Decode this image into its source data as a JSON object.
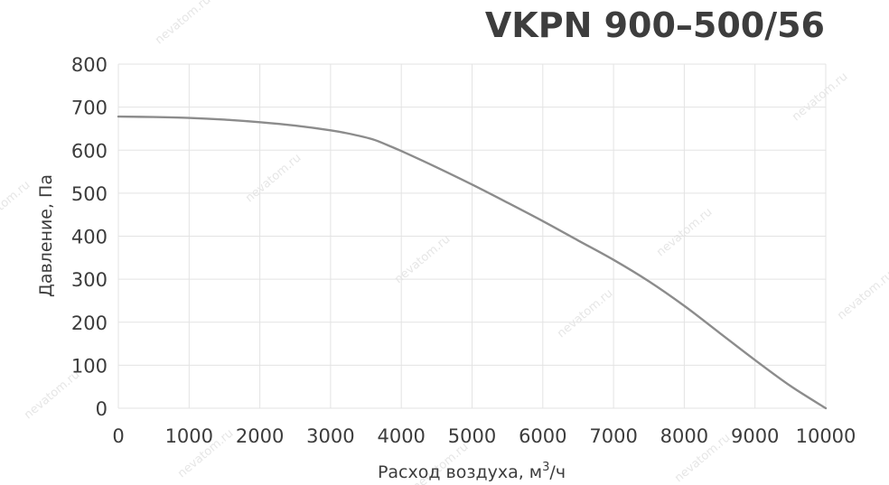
{
  "chart_data": {
    "type": "line",
    "title": "VKPN 900–500/56",
    "xlabel": "Расход воздуха, м",
    "xlabel_sup": "3",
    "xlabel_suffix": "/ч",
    "ylabel": "Давление, Па",
    "xlim": [
      0,
      10000
    ],
    "ylim": [
      0,
      800
    ],
    "x_ticks": [
      0,
      1000,
      2000,
      3000,
      4000,
      5000,
      6000,
      7000,
      8000,
      9000,
      10000
    ],
    "y_ticks": [
      0,
      100,
      200,
      300,
      400,
      500,
      600,
      700,
      800
    ],
    "grid": true,
    "series": [
      {
        "color": "#8c8c8c",
        "x": [
          0,
          500,
          1000,
          1500,
          2000,
          2500,
          3000,
          3300,
          3600,
          3800,
          4000,
          4500,
          5000,
          5500,
          6000,
          6500,
          7000,
          7500,
          8000,
          8500,
          9000,
          9500,
          10000
        ],
        "y": [
          678,
          677,
          675,
          671,
          665,
          657,
          646,
          637,
          625,
          612,
          598,
          560,
          520,
          478,
          435,
          390,
          345,
          295,
          238,
          175,
          112,
          52,
          0
        ]
      }
    ],
    "watermark_text": "nevatom.ru"
  }
}
